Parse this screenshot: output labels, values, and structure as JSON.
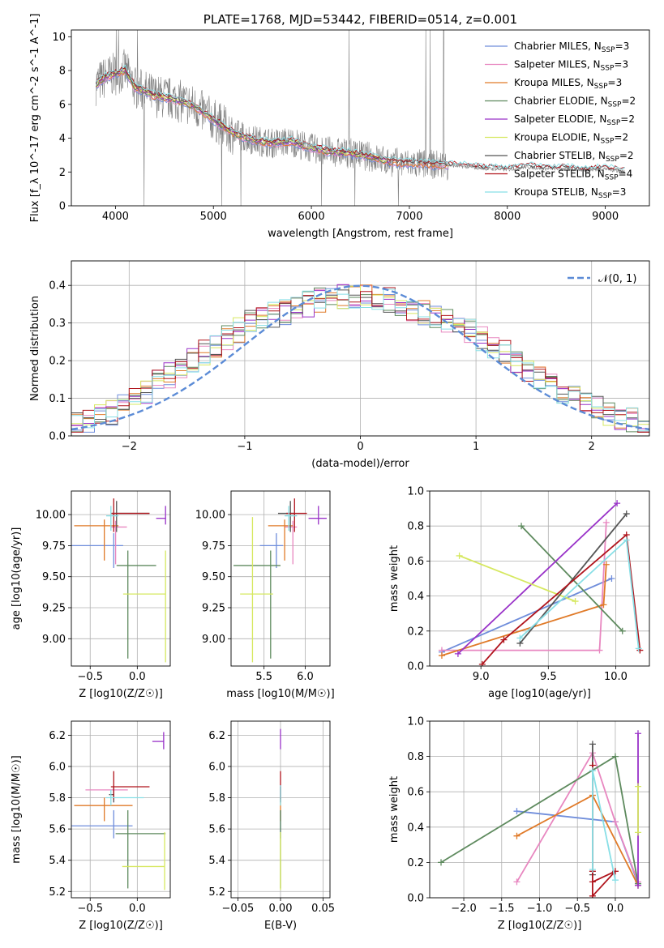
{
  "colors": {
    "chabrier_miles": "#6f8ddb",
    "salpeter_miles": "#e887c0",
    "kroupa_miles": "#e07a28",
    "chabrier_elodie": "#5e8a5e",
    "salpeter_elodie": "#9932c8",
    "kroupa_elodie": "#d6e860",
    "chabrier_stelib": "#555555",
    "salpeter_stelib": "#b0141c",
    "kroupa_stelib": "#88dfe6",
    "data": "#808080",
    "gaussian": "#5b8bd6"
  },
  "chart_data": [
    {
      "id": "spectrum",
      "type": "line",
      "title": "PLATE=1768, MJD=53442, FIBERID=0514, z=0.001",
      "xlabel": "wavelength [Angstrom, rest frame]",
      "ylabel": "Flux [f_λ 10^-17 erg cm^-2 s^-1 A^-1]",
      "xlim": [
        3550,
        9450
      ],
      "ylim": [
        0,
        10.4
      ],
      "xticks": [
        4000,
        5000,
        6000,
        7000,
        8000,
        9000
      ],
      "yticks": [
        0,
        2,
        4,
        6,
        8,
        10
      ],
      "grid": false,
      "legend_position": "top-right",
      "continuum_x": [
        3800,
        3900,
        4000,
        4100,
        4200,
        4400,
        4600,
        4800,
        5000,
        5200,
        5400,
        5600,
        5800,
        6000,
        6200,
        6400,
        6600,
        6800,
        7000,
        7200,
        7400,
        7600,
        7800,
        8000,
        8200,
        8400,
        8600,
        8800,
        9000,
        9200
      ],
      "continuum_y": [
        7.2,
        7.6,
        7.8,
        8.0,
        7.0,
        6.5,
        6.3,
        5.9,
        5.1,
        4.3,
        3.9,
        3.7,
        3.8,
        3.4,
        3.2,
        3.1,
        2.9,
        2.6,
        2.5,
        2.45,
        2.4,
        2.3,
        2.2,
        2.15,
        2.3,
        2.2,
        2.2,
        2.1,
        2.2,
        2.0
      ],
      "series": [
        {
          "name": "Chabrier MILES",
          "nssp": "3",
          "color_key": "chabrier_miles",
          "xmax": 7400
        },
        {
          "name": "Salpeter MILES",
          "nssp": "3",
          "color_key": "salpeter_miles",
          "xmax": 7400
        },
        {
          "name": "Kroupa MILES",
          "nssp": "3",
          "color_key": "kroupa_miles",
          "xmax": 7400
        },
        {
          "name": "Chabrier ELODIE",
          "nssp": "2",
          "color_key": "chabrier_elodie",
          "xmax": 6800
        },
        {
          "name": "Salpeter ELODIE",
          "nssp": "2",
          "color_key": "salpeter_elodie",
          "xmax": 6800
        },
        {
          "name": "Kroupa ELODIE",
          "nssp": "2",
          "color_key": "kroupa_elodie",
          "xmax": 6800
        },
        {
          "name": "Chabrier STELIB",
          "nssp": "2",
          "color_key": "chabrier_stelib",
          "xmax": 9200
        },
        {
          "name": "Salpeter STELIB",
          "nssp": "4",
          "color_key": "salpeter_stelib",
          "xmax": 9200
        },
        {
          "name": "Kroupa STELIB",
          "nssp": "3",
          "color_key": "kroupa_stelib",
          "xmax": 9200
        }
      ]
    },
    {
      "id": "residuals",
      "type": "histogram",
      "xlabel": "(data-model)/error",
      "ylabel": "Normed distribution",
      "xlim": [
        -2.5,
        2.5
      ],
      "ylim": [
        0,
        0.465
      ],
      "xticks": [
        -2,
        -1,
        0,
        1,
        2
      ],
      "yticks": [
        0.0,
        0.1,
        0.2,
        0.3,
        0.4
      ],
      "grid": true,
      "legend_position": "top-right",
      "gaussian_label": "𝒩(0, 1)",
      "bin_edges_start": -2.5,
      "bin_width": 0.1,
      "profile": [
        0.03,
        0.04,
        0.05,
        0.06,
        0.08,
        0.1,
        0.12,
        0.14,
        0.16,
        0.18,
        0.2,
        0.22,
        0.24,
        0.26,
        0.28,
        0.3,
        0.31,
        0.32,
        0.33,
        0.34,
        0.35,
        0.36,
        0.37,
        0.37,
        0.37,
        0.37,
        0.37,
        0.36,
        0.35,
        0.34,
        0.33,
        0.32,
        0.31,
        0.3,
        0.28,
        0.26,
        0.24,
        0.22,
        0.2,
        0.18,
        0.16,
        0.14,
        0.12,
        0.1,
        0.085,
        0.07,
        0.06,
        0.05,
        0.04,
        0.03
      ]
    },
    {
      "id": "age-vs-Z",
      "type": "errorbar",
      "xlabel": "Z [log10(Z/Z☉)]",
      "ylabel": "age [log10(age/yr)]",
      "xlim": [
        -0.7,
        0.35
      ],
      "ylim": [
        8.78,
        10.19
      ],
      "xticks": [
        -0.5,
        0.0
      ],
      "yticks": [
        9.0,
        9.25,
        9.5,
        9.75,
        10.0
      ],
      "grid": true,
      "points": [
        {
          "color_key": "chabrier_miles",
          "x": -0.25,
          "y": 9.75,
          "xl": 0.45,
          "xh": 0.1,
          "yl": 0.18,
          "yh": 0.1
        },
        {
          "color_key": "salpeter_miles",
          "x": -0.23,
          "y": 9.9,
          "xl": 0.05,
          "xh": 0.12,
          "yl": 0.3,
          "yh": 0.05
        },
        {
          "color_key": "kroupa_miles",
          "x": -0.35,
          "y": 9.91,
          "xl": 0.32,
          "xh": 0.15,
          "yl": 0.28,
          "yh": 0.05
        },
        {
          "color_key": "chabrier_elodie",
          "x": -0.1,
          "y": 9.59,
          "xl": 0.12,
          "xh": 0.3,
          "yl": 0.75,
          "yh": 0.12
        },
        {
          "color_key": "salpeter_elodie",
          "x": 0.3,
          "y": 9.97,
          "xl": 0.1,
          "xh": 0.0,
          "yl": 0.05,
          "yh": 0.1
        },
        {
          "color_key": "kroupa_elodie",
          "x": 0.3,
          "y": 9.36,
          "xl": 0.45,
          "xh": 0.0,
          "yl": 0.55,
          "yh": 0.35
        },
        {
          "color_key": "chabrier_stelib",
          "x": -0.22,
          "y": 10.01,
          "xl": 0.05,
          "xh": 0.35,
          "yl": 0.15,
          "yh": 0.1
        },
        {
          "color_key": "salpeter_stelib",
          "x": -0.25,
          "y": 10.01,
          "xl": 0.03,
          "xh": 0.38,
          "yl": 0.15,
          "yh": 0.12
        },
        {
          "color_key": "kroupa_stelib",
          "x": -0.28,
          "y": 9.99,
          "xl": 0.05,
          "xh": 0.08,
          "yl": 0.12,
          "yh": 0.08
        }
      ]
    },
    {
      "id": "age-vs-mass",
      "type": "errorbar",
      "xlabel": "mass [log10(M/M☉)]",
      "ylabel": "",
      "xlim": [
        5.1,
        6.3
      ],
      "ylim": [
        8.78,
        10.19
      ],
      "xticks": [
        5.5,
        6.0
      ],
      "yticks": [
        9.0,
        9.25,
        9.5,
        9.75,
        10.0
      ],
      "grid": true,
      "points": [
        {
          "color_key": "chabrier_miles",
          "x": 5.65,
          "y": 9.75,
          "xl": 0.2,
          "xh": 0.08,
          "yl": 0.18,
          "yh": 0.1
        },
        {
          "color_key": "salpeter_miles",
          "x": 5.85,
          "y": 9.9,
          "xl": 0.1,
          "xh": 0.05,
          "yl": 0.3,
          "yh": 0.05
        },
        {
          "color_key": "kroupa_miles",
          "x": 5.75,
          "y": 9.91,
          "xl": 0.2,
          "xh": 0.1,
          "yl": 0.28,
          "yh": 0.05
        },
        {
          "color_key": "chabrier_elodie",
          "x": 5.58,
          "y": 9.59,
          "xl": 0.45,
          "xh": 0.12,
          "yl": 0.75,
          "yh": 0.12
        },
        {
          "color_key": "salpeter_elodie",
          "x": 6.16,
          "y": 9.97,
          "xl": 0.12,
          "xh": 0.1,
          "yl": 0.05,
          "yh": 0.1
        },
        {
          "color_key": "kroupa_elodie",
          "x": 5.36,
          "y": 9.36,
          "xl": 0.15,
          "xh": 0.25,
          "yl": 0.55,
          "yh": 0.62
        },
        {
          "color_key": "chabrier_stelib",
          "x": 5.82,
          "y": 10.01,
          "xl": 0.15,
          "xh": 0.05,
          "yl": 0.15,
          "yh": 0.1
        },
        {
          "color_key": "salpeter_stelib",
          "x": 5.87,
          "y": 10.01,
          "xl": 0.1,
          "xh": 0.15,
          "yl": 0.15,
          "yh": 0.12
        },
        {
          "color_key": "kroupa_stelib",
          "x": 5.8,
          "y": 9.99,
          "xl": 0.05,
          "xh": 0.1,
          "yl": 0.12,
          "yh": 0.08
        }
      ]
    },
    {
      "id": "weight-vs-age",
      "type": "line",
      "xlabel": "age [log10(age/yr)]",
      "ylabel": "mass weight",
      "xlim": [
        8.62,
        10.25
      ],
      "ylim": [
        0,
        1.0
      ],
      "xticks": [
        9.0,
        9.5,
        10.0
      ],
      "yticks": [
        0.0,
        0.2,
        0.4,
        0.6,
        0.8,
        1.0
      ],
      "grid": true,
      "series": [
        {
          "color_key": "chabrier_miles",
          "x": [
            8.71,
            9.97
          ],
          "y": [
            0.08,
            0.5
          ]
        },
        {
          "color_key": "salpeter_miles",
          "x": [
            8.71,
            9.88,
            9.93
          ],
          "y": [
            0.09,
            0.09,
            0.82
          ]
        },
        {
          "color_key": "kroupa_miles",
          "x": [
            8.71,
            9.91,
            9.93
          ],
          "y": [
            0.06,
            0.35,
            0.58
          ]
        },
        {
          "color_key": "chabrier_elodie",
          "x": [
            9.3,
            10.05
          ],
          "y": [
            0.8,
            0.2
          ]
        },
        {
          "color_key": "salpeter_elodie",
          "x": [
            8.83,
            10.01
          ],
          "y": [
            0.07,
            0.93
          ]
        },
        {
          "color_key": "kroupa_elodie",
          "x": [
            8.84,
            9.7
          ],
          "y": [
            0.63,
            0.37
          ]
        },
        {
          "color_key": "chabrier_stelib",
          "x": [
            9.29,
            10.08
          ],
          "y": [
            0.13,
            0.87
          ]
        },
        {
          "color_key": "salpeter_stelib",
          "x": [
            9.01,
            9.17,
            10.08,
            10.18
          ],
          "y": [
            0.01,
            0.15,
            0.75,
            0.09
          ]
        },
        {
          "color_key": "kroupa_stelib",
          "x": [
            9.29,
            10.08,
            10.17
          ],
          "y": [
            0.16,
            0.72,
            0.1
          ]
        }
      ]
    },
    {
      "id": "mass-vs-Z",
      "type": "errorbar",
      "xlabel": "Z [log10(Z/Z☉)]",
      "ylabel": "mass [log10(M/M☉)]",
      "xlim": [
        -0.7,
        0.35
      ],
      "ylim": [
        5.16,
        6.29
      ],
      "xticks": [
        -0.5,
        0.0
      ],
      "yticks": [
        5.2,
        5.4,
        5.6,
        5.8,
        6.0,
        6.2
      ],
      "grid": true,
      "points": [
        {
          "color_key": "chabrier_miles",
          "x": -0.25,
          "y": 5.62,
          "xl": 0.45,
          "xh": 0.2,
          "yl": 0.08,
          "yh": 0.1
        },
        {
          "color_key": "salpeter_miles",
          "x": -0.25,
          "y": 5.85,
          "xl": 0.3,
          "xh": 0.15,
          "yl": 0.08,
          "yh": 0.03
        },
        {
          "color_key": "kroupa_miles",
          "x": -0.35,
          "y": 5.75,
          "xl": 0.32,
          "xh": 0.3,
          "yl": 0.1,
          "yh": 0.05
        },
        {
          "color_key": "chabrier_elodie",
          "x": -0.1,
          "y": 5.57,
          "xl": 0.13,
          "xh": 0.4,
          "yl": 0.35,
          "yh": 0.15
        },
        {
          "color_key": "salpeter_elodie",
          "x": 0.28,
          "y": 6.16,
          "xl": 0.12,
          "xh": 0.0,
          "yl": 0.05,
          "yh": 0.06
        },
        {
          "color_key": "kroupa_elodie",
          "x": 0.29,
          "y": 5.36,
          "xl": 0.45,
          "xh": 0.0,
          "yl": 0.15,
          "yh": 0.22
        },
        {
          "color_key": "chabrier_stelib",
          "x": -0.25,
          "y": 5.82,
          "xl": 0.05,
          "xh": 0.0,
          "yl": 0.05,
          "yh": 0.05
        },
        {
          "color_key": "salpeter_stelib",
          "x": -0.25,
          "y": 5.87,
          "xl": 0.03,
          "xh": 0.38,
          "yl": 0.08,
          "yh": 0.1
        },
        {
          "color_key": "kroupa_stelib",
          "x": -0.28,
          "y": 5.8,
          "xl": 0.05,
          "xh": 0.35,
          "yl": 0.05,
          "yh": 0.05
        }
      ]
    },
    {
      "id": "mass-vs-ebv",
      "type": "errorbar",
      "xlabel": "E(B-V)",
      "ylabel": "",
      "xlim": [
        -0.058,
        0.058
      ],
      "ylim": [
        5.16,
        6.29
      ],
      "xticks": [
        -0.05,
        0.0,
        0.05
      ],
      "yticks": [
        5.2,
        5.4,
        5.6,
        5.8,
        6.0,
        6.2
      ],
      "grid": true,
      "points": [
        {
          "color_key": "chabrier_miles",
          "x": 0.0,
          "y": 5.62,
          "xl": 0,
          "xh": 0,
          "yl": 0.08,
          "yh": 0.1
        },
        {
          "color_key": "salpeter_miles",
          "x": 0.0,
          "y": 5.85,
          "xl": 0,
          "xh": 0,
          "yl": 0.08,
          "yh": 0.03
        },
        {
          "color_key": "kroupa_miles",
          "x": 0.0,
          "y": 5.75,
          "xl": 0,
          "xh": 0,
          "yl": 0.1,
          "yh": 0.05
        },
        {
          "color_key": "chabrier_elodie",
          "x": 0.0,
          "y": 5.57,
          "xl": 0,
          "xh": 0,
          "yl": 0.35,
          "yh": 0.15
        },
        {
          "color_key": "salpeter_elodie",
          "x": 0.0,
          "y": 6.16,
          "xl": 0,
          "xh": 0,
          "yl": 0.05,
          "yh": 0.08
        },
        {
          "color_key": "kroupa_elodie",
          "x": 0.0,
          "y": 5.36,
          "xl": 0,
          "xh": 0,
          "yl": 0.15,
          "yh": 0.22
        },
        {
          "color_key": "chabrier_stelib",
          "x": 0.0,
          "y": 5.82,
          "xl": 0,
          "xh": 0,
          "yl": 0.05,
          "yh": 0.05
        },
        {
          "color_key": "salpeter_stelib",
          "x": 0.0,
          "y": 5.87,
          "xl": 0,
          "xh": 0,
          "yl": 0.08,
          "yh": 0.1
        },
        {
          "color_key": "kroupa_stelib",
          "x": 0.0,
          "y": 5.8,
          "xl": 0,
          "xh": 0,
          "yl": 0.05,
          "yh": 0.08
        }
      ]
    },
    {
      "id": "weight-vs-Z",
      "type": "line",
      "xlabel": "Z [log10(Z/Z☉)]",
      "ylabel": "mass weight",
      "xlim": [
        -2.45,
        0.45
      ],
      "ylim": [
        0,
        1.0
      ],
      "xticks": [
        -2.0,
        -1.5,
        -1.0,
        -0.5,
        0.0
      ],
      "yticks": [
        0.0,
        0.2,
        0.4,
        0.6,
        0.8,
        1.0
      ],
      "grid": true,
      "series": [
        {
          "color_key": "chabrier_miles",
          "x": [
            -1.3,
            0.0,
            0.3
          ],
          "y": [
            0.49,
            0.43,
            0.08
          ]
        },
        {
          "color_key": "salpeter_miles",
          "x": [
            -1.3,
            -0.3,
            0.0,
            0.3
          ],
          "y": [
            0.09,
            0.82,
            0.43,
            0.09
          ]
        },
        {
          "color_key": "kroupa_miles",
          "x": [
            -1.3,
            -0.3,
            0.3
          ],
          "y": [
            0.35,
            0.58,
            0.07
          ]
        },
        {
          "color_key": "chabrier_elodie",
          "x": [
            -2.3,
            0.0,
            0.3
          ],
          "y": [
            0.2,
            0.8,
            0.08
          ]
        },
        {
          "color_key": "salpeter_elodie",
          "x": [
            0.3,
            0.3
          ],
          "y": [
            0.07,
            0.93
          ]
        },
        {
          "color_key": "kroupa_elodie",
          "x": [
            0.3,
            0.3
          ],
          "y": [
            0.37,
            0.63
          ]
        },
        {
          "color_key": "chabrier_stelib",
          "x": [
            -0.3,
            -0.3
          ],
          "y": [
            0.13,
            0.87
          ]
        },
        {
          "color_key": "salpeter_stelib",
          "x": [
            -0.3,
            -0.3,
            0.0,
            -0.3,
            -0.3
          ],
          "y": [
            0.75,
            0.01,
            0.15,
            0.09,
            0.15
          ]
        },
        {
          "color_key": "kroupa_stelib",
          "x": [
            -0.3,
            -0.3,
            0.0
          ],
          "y": [
            0.16,
            0.72,
            0.1
          ]
        }
      ]
    }
  ]
}
